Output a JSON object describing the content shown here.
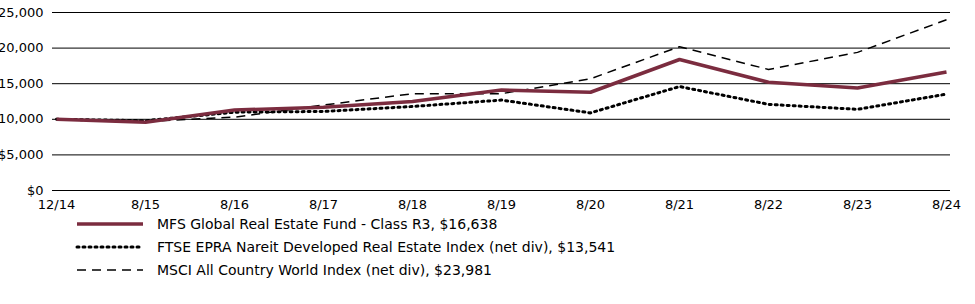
{
  "chart_data": {
    "type": "line",
    "categories": [
      "12/14",
      "8/15",
      "8/16",
      "8/17",
      "8/18",
      "8/19",
      "8/20",
      "8/21",
      "8/22",
      "8/23",
      "8/24"
    ],
    "series": [
      {
        "name": "MFS Global Real Estate Fund - Class R3, $16,638",
        "color": "#7b2c3f",
        "line_style": "solid",
        "values": [
          10000,
          9600,
          11300,
          11700,
          12500,
          14100,
          13800,
          18400,
          15200,
          14400,
          16638
        ]
      },
      {
        "name": "FTSE EPRA Nareit Developed Real Estate Index (net div), $13,541",
        "color": "#000000",
        "line_style": "dotted",
        "values": [
          10000,
          9800,
          11000,
          11100,
          11800,
          12700,
          10900,
          14600,
          12100,
          11400,
          13541
        ]
      },
      {
        "name": "MSCI All Country World Index (net div), $23,981",
        "color": "#000000",
        "line_style": "dashed",
        "values": [
          10000,
          9700,
          10300,
          12000,
          13600,
          13600,
          15700,
          20200,
          17000,
          19400,
          23981
        ]
      }
    ],
    "ylim": [
      0,
      25000
    ],
    "yticks": [
      {
        "value": 0,
        "label": "$0"
      },
      {
        "value": 5000,
        "label": "$5,000"
      },
      {
        "value": 10000,
        "label": "$10,000"
      },
      {
        "value": 15000,
        "label": "$15,000"
      },
      {
        "value": 20000,
        "label": "$20,000"
      },
      {
        "value": 25000,
        "label": "$25,000"
      }
    ],
    "grid": true,
    "legend": "bottom"
  }
}
